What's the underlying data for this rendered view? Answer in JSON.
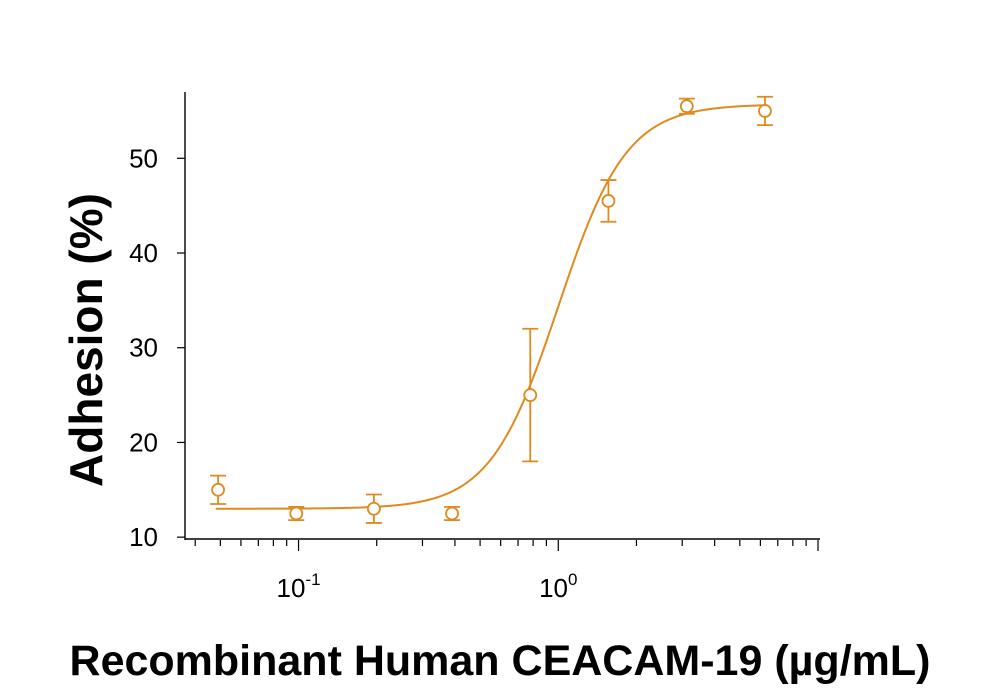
{
  "chart_data": {
    "type": "scatter",
    "title": "",
    "xlabel": "Recombinant Human CEACAM-19 (µg/mL)",
    "ylabel": "Adhesion (%)",
    "xscale": "log",
    "xlim": [
      0.0382,
      10
    ],
    "ylim": [
      9.7,
      57
    ],
    "yticks": [
      10,
      20,
      30,
      40,
      50
    ],
    "xticks_major": [
      {
        "value": 0.1,
        "base": "10",
        "exp": "-1"
      },
      {
        "value": 1,
        "base": "10",
        "exp": "0"
      }
    ],
    "color": "#E08A1E",
    "grid": false,
    "legend": "none",
    "series": [
      {
        "x": [
          0.049,
          0.098,
          0.195,
          0.39,
          0.78,
          1.56,
          3.125,
          6.25
        ],
        "y": [
          15.0,
          12.5,
          13.0,
          12.5,
          25.0,
          45.5,
          55.5,
          55.0
        ],
        "yerr": [
          1.5,
          0.7,
          1.5,
          0.7,
          7.0,
          2.2,
          0.8,
          1.5
        ]
      }
    ],
    "fit_curve": {
      "model": "four-parameter logistic",
      "bottom": 13.0,
      "top": 55.7,
      "ec50": 1.0,
      "hill": 3.3
    }
  }
}
